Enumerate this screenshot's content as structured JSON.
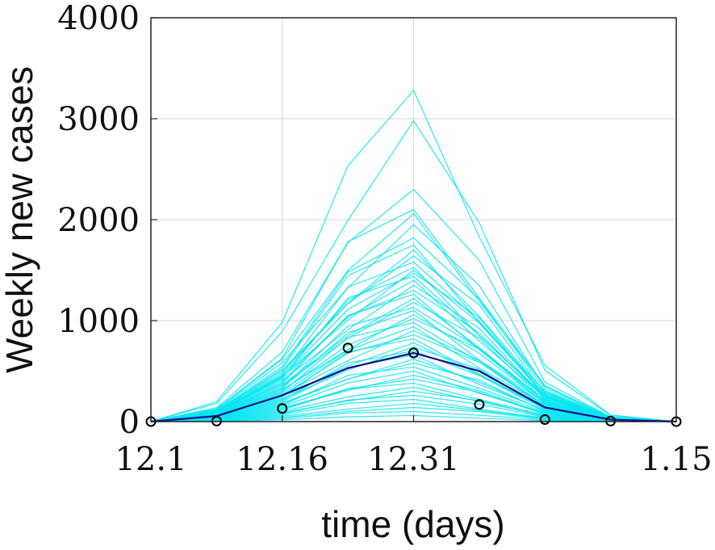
{
  "chart_data": {
    "type": "line",
    "xlabel": "time (days)",
    "ylabel": "Weekly new cases",
    "xlim": [
      0,
      8
    ],
    "ylim": [
      0,
      4000
    ],
    "x_ticks": [
      {
        "value": 0,
        "label": "12.1"
      },
      {
        "value": 2,
        "label": "12.16"
      },
      {
        "value": 4,
        "label": "12.31"
      },
      {
        "value": 8,
        "label": "1.15"
      }
    ],
    "y_ticks": [
      {
        "value": 0,
        "label": "0"
      },
      {
        "value": 1000,
        "label": "1000"
      },
      {
        "value": 2000,
        "label": "2000"
      },
      {
        "value": 3000,
        "label": "3000"
      },
      {
        "value": 4000,
        "label": "4000"
      }
    ],
    "grid": true,
    "x": [
      0,
      1,
      2,
      3,
      4,
      5,
      6,
      7,
      8
    ],
    "ensemble_color": "#00e5f0",
    "mean_color": "#10108a",
    "observed_color": "#000000",
    "ensemble_peaks": [
      3280,
      2980,
      2300,
      2100,
      2060,
      1950,
      1820,
      1750,
      1700,
      1640,
      1580,
      1530,
      1500,
      1470,
      1440,
      1400,
      1350,
      1300,
      1260,
      1220,
      1180,
      1130,
      1100,
      1060,
      1020,
      980,
      940,
      900,
      860,
      820,
      780,
      740,
      700,
      660,
      620,
      580,
      540,
      500,
      460,
      420,
      380,
      340,
      300,
      260,
      220,
      180,
      140,
      100,
      60
    ],
    "ensemble_shape": [
      0,
      0.06,
      0.3,
      0.76,
      1.0,
      0.63,
      0.17,
      0.02,
      0
    ],
    "mean_series": [
      0,
      55,
      260,
      530,
      680,
      500,
      140,
      20,
      0
    ],
    "observed": [
      0,
      5,
      130,
      730,
      680,
      170,
      20,
      5,
      0
    ]
  }
}
